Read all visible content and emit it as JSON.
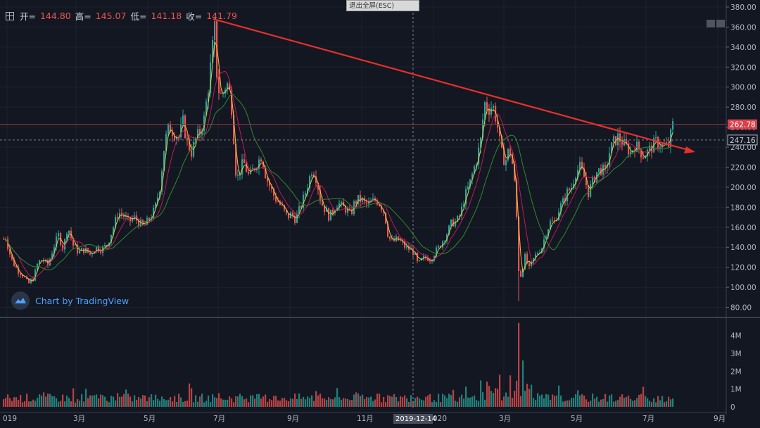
{
  "toolbar": {
    "exit_fullscreen_label": "退出全屏(ESC)"
  },
  "ohlc": {
    "open_label": "开=",
    "open_value": "144.80",
    "high_label": "高=",
    "high_value": "145.07",
    "low_label": "低=",
    "low_value": "141.18",
    "close_label": "收=",
    "close_value": "141.79"
  },
  "watermark": "Chart by TradingView",
  "colors": {
    "background": "#131722",
    "up": "#26a69a",
    "down": "#ef5350",
    "trendline": "#e8302a",
    "ma_fast": "#e5c546",
    "ma_mid": "#c2185b",
    "ma_slow": "#2e8b2e",
    "price_label_red": "#d9404a",
    "price_label_dark": "#131722"
  },
  "chart_data": {
    "type": "candlestick",
    "price_axis": {
      "ticks": [
        "380.00",
        "360.00",
        "340.00",
        "320.00",
        "300.00",
        "280.00",
        "260.00",
        "240.00",
        "220.00",
        "200.00",
        "180.00",
        "160.00",
        "140.00",
        "120.00",
        "100.00",
        "80.00"
      ],
      "ylim": [
        70,
        382
      ]
    },
    "volume_axis": {
      "ticks": [
        "4M",
        "3M",
        "2M",
        "1M",
        "0"
      ],
      "ylim": [
        0,
        4.8
      ]
    },
    "time_axis": {
      "labels": [
        "019",
        "3月",
        "5月",
        "7月",
        "9月",
        "11月",
        "020",
        "3月",
        "5月",
        "7月",
        "9月"
      ],
      "crosshair_label": "2019-12-14"
    },
    "price_labels": {
      "last": "262.78",
      "crosshair": "247.16"
    },
    "price_path": [
      [
        0,
        145
      ],
      [
        8,
        150
      ],
      [
        16,
        128
      ],
      [
        24,
        118
      ],
      [
        33,
        112
      ],
      [
        40,
        103
      ],
      [
        48,
        110
      ],
      [
        54,
        125
      ],
      [
        60,
        128
      ],
      [
        68,
        122
      ],
      [
        76,
        140
      ],
      [
        83,
        152
      ],
      [
        90,
        138
      ],
      [
        96,
        162
      ],
      [
        104,
        142
      ],
      [
        112,
        135
      ],
      [
        120,
        138
      ],
      [
        128,
        133
      ],
      [
        136,
        140
      ],
      [
        144,
        138
      ],
      [
        152,
        142
      ],
      [
        160,
        158
      ],
      [
        168,
        175
      ],
      [
        175,
        172
      ],
      [
        183,
        165
      ],
      [
        190,
        170
      ],
      [
        197,
        165
      ],
      [
        204,
        160
      ],
      [
        212,
        168
      ],
      [
        220,
        178
      ],
      [
        227,
        200
      ],
      [
        234,
        245
      ],
      [
        240,
        260
      ],
      [
        247,
        255
      ],
      [
        254,
        250
      ],
      [
        260,
        265
      ],
      [
        266,
        245
      ],
      [
        272,
        235
      ],
      [
        278,
        248
      ],
      [
        284,
        255
      ],
      [
        290,
        268
      ],
      [
        296,
        300
      ],
      [
        302,
        340
      ],
      [
        305,
        358
      ],
      [
        309,
        300
      ],
      [
        315,
        290
      ],
      [
        322,
        305
      ],
      [
        328,
        290
      ],
      [
        333,
        240
      ],
      [
        336,
        205
      ],
      [
        340,
        215
      ],
      [
        346,
        225
      ],
      [
        354,
        210
      ],
      [
        360,
        218
      ],
      [
        366,
        225
      ],
      [
        372,
        232
      ],
      [
        378,
        210
      ],
      [
        384,
        200
      ],
      [
        390,
        190
      ],
      [
        396,
        185
      ],
      [
        402,
        178
      ],
      [
        408,
        170
      ],
      [
        414,
        173
      ],
      [
        420,
        168
      ],
      [
        426,
        178
      ],
      [
        432,
        190
      ],
      [
        438,
        205
      ],
      [
        444,
        220
      ],
      [
        450,
        208
      ],
      [
        456,
        185
      ],
      [
        462,
        178
      ],
      [
        468,
        170
      ],
      [
        474,
        178
      ],
      [
        480,
        185
      ],
      [
        486,
        180
      ],
      [
        492,
        178
      ],
      [
        498,
        172
      ],
      [
        504,
        185
      ],
      [
        510,
        188
      ],
      [
        516,
        186
      ],
      [
        522,
        182
      ],
      [
        528,
        185
      ],
      [
        534,
        188
      ],
      [
        540,
        183
      ],
      [
        546,
        175
      ],
      [
        552,
        150
      ],
      [
        558,
        145
      ],
      [
        564,
        148
      ],
      [
        570,
        145
      ],
      [
        576,
        140
      ],
      [
        582,
        138
      ],
      [
        588,
        135
      ],
      [
        594,
        122
      ],
      [
        600,
        128
      ],
      [
        606,
        130
      ],
      [
        612,
        128
      ],
      [
        618,
        135
      ],
      [
        624,
        140
      ],
      [
        630,
        148
      ],
      [
        636,
        155
      ],
      [
        642,
        165
      ],
      [
        648,
        165
      ],
      [
        654,
        172
      ],
      [
        660,
        190
      ],
      [
        666,
        200
      ],
      [
        672,
        215
      ],
      [
        678,
        230
      ],
      [
        684,
        250
      ],
      [
        688,
        285
      ],
      [
        694,
        278
      ],
      [
        700,
        282
      ],
      [
        706,
        265
      ],
      [
        712,
        235
      ],
      [
        718,
        225
      ],
      [
        724,
        240
      ],
      [
        730,
        215
      ],
      [
        734,
        170
      ],
      [
        737,
        118
      ],
      [
        740,
        112
      ],
      [
        746,
        130
      ],
      [
        752,
        118
      ],
      [
        758,
        128
      ],
      [
        764,
        135
      ],
      [
        770,
        140
      ],
      [
        776,
        155
      ],
      [
        782,
        165
      ],
      [
        788,
        165
      ],
      [
        794,
        178
      ],
      [
        800,
        185
      ],
      [
        806,
        195
      ],
      [
        812,
        200
      ],
      [
        818,
        215
      ],
      [
        824,
        220
      ],
      [
        830,
        210
      ],
      [
        836,
        195
      ],
      [
        842,
        205
      ],
      [
        848,
        215
      ],
      [
        854,
        218
      ],
      [
        860,
        215
      ],
      [
        866,
        235
      ],
      [
        872,
        245
      ],
      [
        878,
        250
      ],
      [
        884,
        245
      ],
      [
        890,
        240
      ],
      [
        896,
        235
      ],
      [
        902,
        242
      ],
      [
        908,
        238
      ],
      [
        914,
        232
      ],
      [
        920,
        235
      ],
      [
        926,
        240
      ],
      [
        932,
        245
      ],
      [
        938,
        243
      ],
      [
        944,
        240
      ],
      [
        950,
        242
      ],
      [
        956,
        262
      ]
    ]
  }
}
